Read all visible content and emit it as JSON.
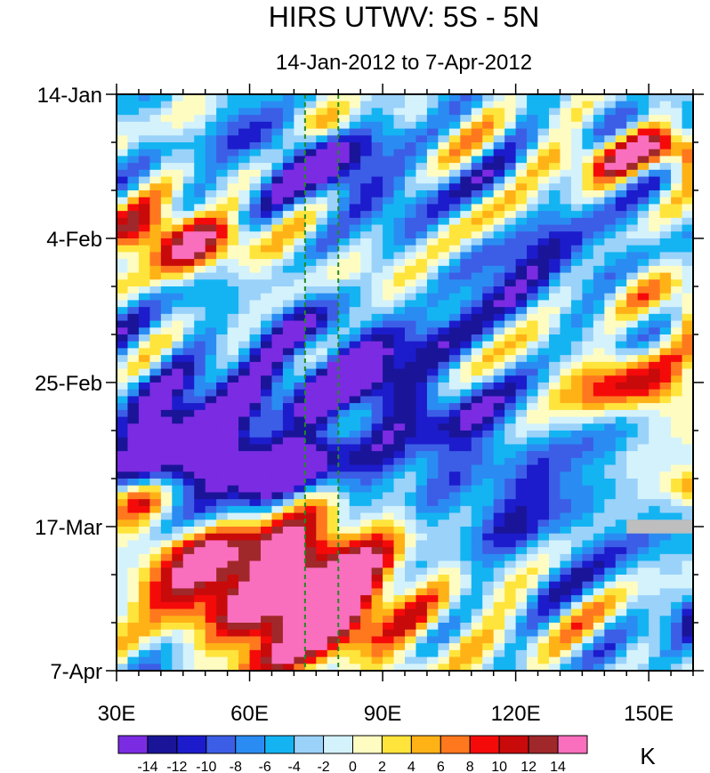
{
  "chart_data": {
    "type": "heatmap",
    "title": "HIRS UTWV: 5S - 5N",
    "subtitle": "14-Jan-2012 to 7-Apr-2012",
    "xlabel": "",
    "ylabel": "",
    "xlim": [
      30,
      160
    ],
    "ylim_days": [
      0,
      84
    ],
    "y_reversed": true,
    "x_ticks": [
      {
        "value": 30,
        "label": "30E"
      },
      {
        "value": 60,
        "label": "60E"
      },
      {
        "value": 90,
        "label": "90E"
      },
      {
        "value": 120,
        "label": "120E"
      },
      {
        "value": 150,
        "label": "150E"
      }
    ],
    "x_minor_step": 5,
    "y_ticks": [
      {
        "value": 0,
        "label": "14-Jan"
      },
      {
        "value": 21,
        "label": "4-Feb"
      },
      {
        "value": 42,
        "label": "25-Feb"
      },
      {
        "value": 63,
        "label": "17-Mar"
      },
      {
        "value": 84,
        "label": "7-Apr"
      }
    ],
    "y_minor_step": 7,
    "reference_lines_lon": [
      72.5,
      80
    ],
    "reference_line_color": "#228B22",
    "missing_data": {
      "lon": [
        145,
        160
      ],
      "day": [
        62,
        64
      ],
      "color": "#bebebe"
    },
    "colorbar": {
      "units": "K",
      "levels": [
        -14,
        -12,
        -10,
        -8,
        -6,
        -4,
        -2,
        0,
        2,
        4,
        6,
        8,
        10,
        12,
        14
      ],
      "colors": [
        "#7b2be2",
        "#1a1499",
        "#1c1ccc",
        "#3c5ee6",
        "#2a8cf2",
        "#14b4f2",
        "#9ad2fa",
        "#d4f2fc",
        "#fffcc2",
        "#ffe43c",
        "#ffb216",
        "#ff781e",
        "#f50a0a",
        "#c80a0a",
        "#a0282a",
        "#fa6ebe"
      ]
    },
    "anomaly_field_units": "K",
    "features": [
      {
        "lon": 38,
        "day": 20,
        "amp": 12,
        "sx": 9,
        "sy": 3
      },
      {
        "lon": 50,
        "day": 22,
        "amp": 9,
        "sx": 10,
        "sy": 3
      },
      {
        "lon": 70,
        "day": 77,
        "amp": 15,
        "sx": 14,
        "sy": 6
      },
      {
        "lon": 52,
        "day": 72,
        "amp": 11,
        "sx": 14,
        "sy": 5
      },
      {
        "lon": 82,
        "day": 73,
        "amp": 9,
        "sx": 10,
        "sy": 6
      },
      {
        "lon": 75,
        "day": 66,
        "amp": 11,
        "sx": 12,
        "sy": 4
      },
      {
        "lon": 45,
        "day": 66,
        "amp": 7,
        "sx": 12,
        "sy": 3
      },
      {
        "lon": 160,
        "day": 8,
        "amp": 14,
        "sx": 14,
        "sy": 2
      },
      {
        "lon": 140,
        "day": 10,
        "amp": 7,
        "sx": 12,
        "sy": 2
      },
      {
        "lon": 158,
        "day": 30,
        "amp": 9,
        "sx": 10,
        "sy": 3
      },
      {
        "lon": 155,
        "day": 44,
        "amp": 10,
        "sx": 13,
        "sy": 3
      },
      {
        "lon": 135,
        "day": 40,
        "amp": 6,
        "sx": 12,
        "sy": 3
      },
      {
        "lon": 160,
        "day": 57,
        "amp": 8,
        "sx": 6,
        "sy": 2
      },
      {
        "lon": 35,
        "day": 59,
        "amp": 8,
        "sx": 5,
        "sy": 2
      },
      {
        "lon": 92,
        "day": 26,
        "amp": 4,
        "sx": 12,
        "sy": 3
      },
      {
        "lon": 105,
        "day": 17,
        "amp": 3,
        "sx": 12,
        "sy": 3
      },
      {
        "lon": 78,
        "day": 4,
        "amp": 5,
        "sx": 5,
        "sy": 2
      },
      {
        "lon": 100,
        "day": 3,
        "amp": 3,
        "sx": 5,
        "sy": 2
      },
      {
        "lon": 48,
        "day": 4,
        "amp": 3,
        "sx": 6,
        "sy": 2
      },
      {
        "lon": 110,
        "day": 78,
        "amp": 3,
        "sx": 14,
        "sy": 5
      },
      {
        "lon": 160,
        "day": 75,
        "amp": -6,
        "sx": 4,
        "sy": 3
      },
      {
        "lon": 50,
        "day": 54,
        "amp": -12,
        "sx": 14,
        "sy": 4
      },
      {
        "lon": 70,
        "day": 54,
        "amp": -10,
        "sx": 12,
        "sy": 3
      },
      {
        "lon": 55,
        "day": 44,
        "amp": -9,
        "sx": 20,
        "sy": 4
      },
      {
        "lon": 85,
        "day": 42,
        "amp": -11,
        "sx": 10,
        "sy": 3
      },
      {
        "lon": 85,
        "day": 13,
        "amp": -10,
        "sx": 12,
        "sy": 4
      },
      {
        "lon": 65,
        "day": 7,
        "amp": -7,
        "sx": 10,
        "sy": 3
      },
      {
        "lon": 105,
        "day": 50,
        "amp": -7,
        "sx": 16,
        "sy": 5
      },
      {
        "lon": 115,
        "day": 28,
        "amp": -6,
        "sx": 12,
        "sy": 4
      },
      {
        "lon": 125,
        "day": 62,
        "amp": -6,
        "sx": 14,
        "sy": 5
      },
      {
        "lon": 130,
        "day": 22,
        "amp": -5,
        "sx": 12,
        "sy": 4
      },
      {
        "lon": 100,
        "day": 37,
        "amp": -5,
        "sx": 12,
        "sy": 3
      },
      {
        "lon": 75,
        "day": 34,
        "amp": -6,
        "sx": 12,
        "sy": 3
      },
      {
        "lon": 40,
        "day": 50,
        "amp": -6,
        "sx": 8,
        "sy": 4
      }
    ]
  }
}
